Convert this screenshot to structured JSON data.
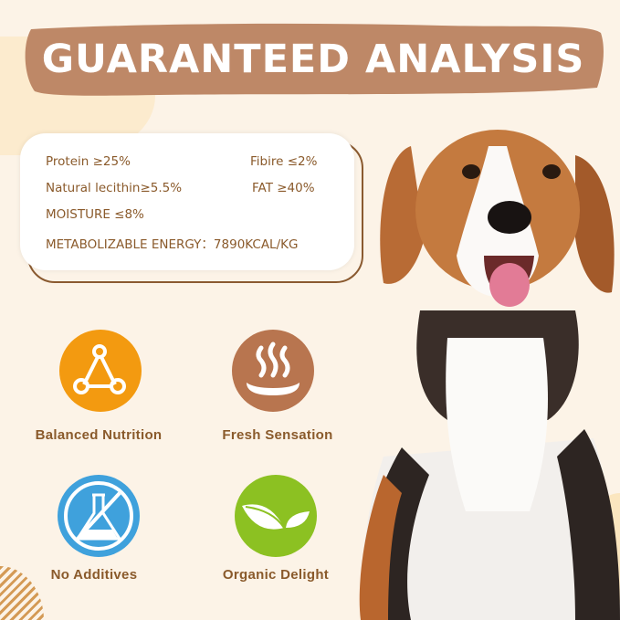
{
  "banner": {
    "title": "GUARANTEED ANALYSIS"
  },
  "analysis": {
    "protein": "Protein ≥25%",
    "fibre": "Fibire ≤2%",
    "lecithin": "Natural lecithin≥5.5%",
    "fat": "FAT ≥40%",
    "moisture": "MOISTURE ≤8%",
    "energy": "METABOLIZABLE ENERGY：7890KCAL/KG"
  },
  "features": [
    {
      "label": "Balanced Nutrition",
      "icon": "molecule-triangle-icon",
      "color": "#f39a10"
    },
    {
      "label": "Fresh Sensation",
      "icon": "steam-bowl-icon",
      "color": "#b8754f"
    },
    {
      "label": "No Additives",
      "icon": "no-chemical-flask-icon",
      "color": "#3fa1dc"
    },
    {
      "label": "Organic Delight",
      "icon": "leaves-icon",
      "color": "#8cc122"
    }
  ],
  "colors": {
    "background": "#fcf3e7",
    "banner": "#be8867",
    "text": "#8a5a2b"
  }
}
